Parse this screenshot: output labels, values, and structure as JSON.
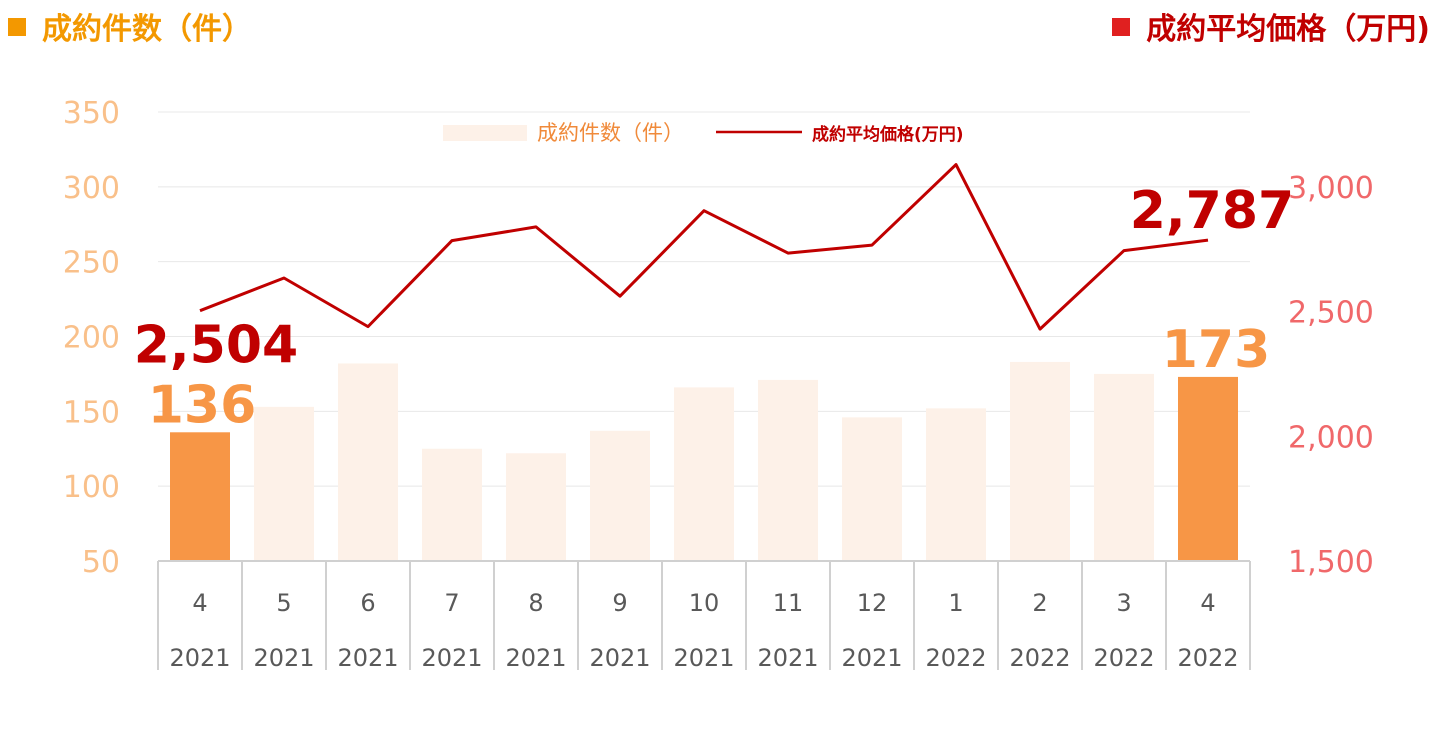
{
  "header": {
    "left_title": "成約件数（件）",
    "right_title": "成約平均価格（万円)"
  },
  "colors": {
    "bar": "#fdf1e8",
    "bar_highlight": "#f79646",
    "line": "#c00000",
    "left_axis": "#f9c08a",
    "right_axis": "#f0686a",
    "tick": "#595959",
    "header_left": "#f39800",
    "header_right": "#c00000"
  },
  "chart_data": {
    "type": "bar",
    "categories": [
      {
        "month": "4",
        "year": "2021"
      },
      {
        "month": "5",
        "year": "2021"
      },
      {
        "month": "6",
        "year": "2021"
      },
      {
        "month": "7",
        "year": "2021"
      },
      {
        "month": "8",
        "year": "2021"
      },
      {
        "month": "9",
        "year": "2021"
      },
      {
        "month": "10",
        "year": "2021"
      },
      {
        "month": "11",
        "year": "2021"
      },
      {
        "month": "12",
        "year": "2021"
      },
      {
        "month": "1",
        "year": "2022"
      },
      {
        "month": "2",
        "year": "2022"
      },
      {
        "month": "3",
        "year": "2022"
      },
      {
        "month": "4",
        "year": "2022"
      }
    ],
    "series": [
      {
        "name": "成約件数(件)",
        "type": "bar",
        "axis": "left",
        "values": [
          136,
          153,
          182,
          125,
          122,
          137,
          166,
          171,
          146,
          152,
          183,
          175,
          173
        ],
        "highlight": [
          0,
          12
        ]
      },
      {
        "name": "成約平均価格(万円)",
        "type": "line",
        "axis": "right",
        "values": [
          2504,
          2635,
          2440,
          2785,
          2840,
          2562,
          2905,
          2735,
          2767,
          3090,
          2430,
          2745,
          2787
        ]
      }
    ],
    "left_axis": {
      "ylim": [
        50,
        350
      ],
      "ticks": [
        "50",
        "100",
        "150",
        "200",
        "250",
        "300",
        "350"
      ]
    },
    "right_axis": {
      "ylim": [
        1500,
        3000
      ],
      "ticks": [
        "1,500",
        "2,000",
        "2,500",
        "3,000"
      ]
    },
    "annotations": [
      {
        "label": "136",
        "series": 0,
        "index": 0
      },
      {
        "label": "173",
        "series": 0,
        "index": 12
      },
      {
        "label": "2,504",
        "series": 1,
        "index": 0
      },
      {
        "label": "2,787",
        "series": 1,
        "index": 12
      }
    ],
    "grid": true,
    "legend": "top-center"
  }
}
